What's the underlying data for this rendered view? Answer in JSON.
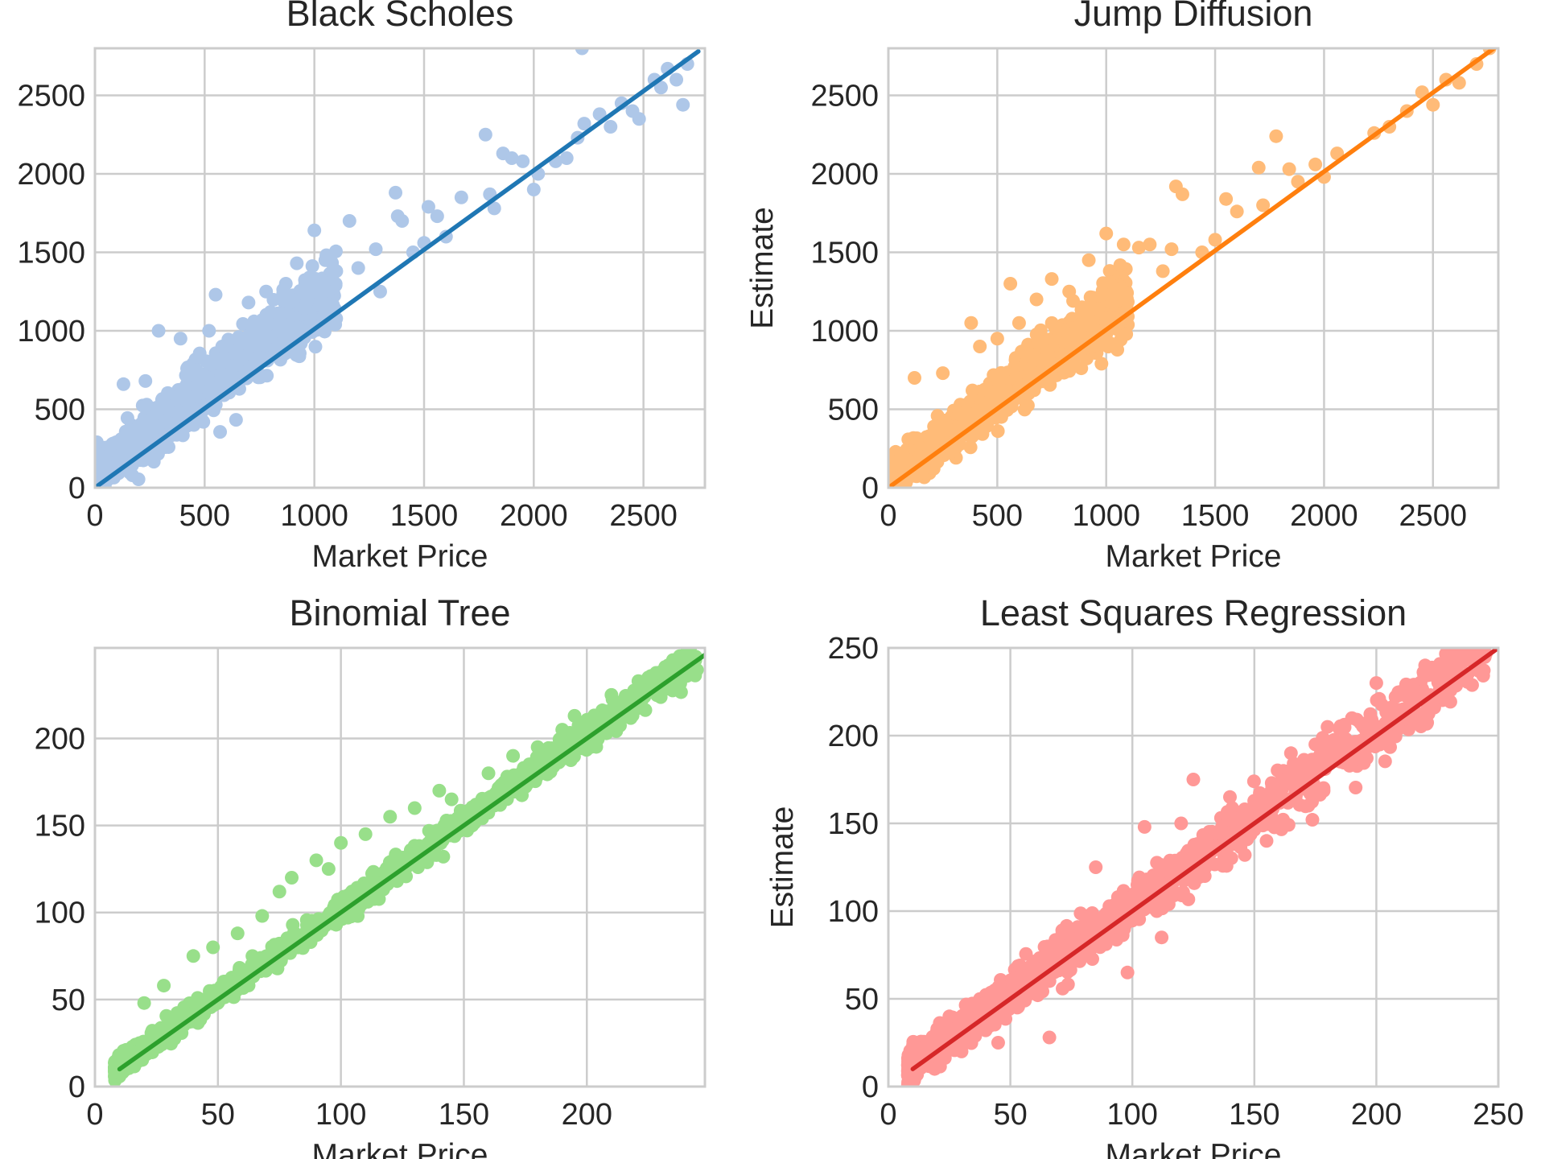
{
  "chart_data": [
    {
      "type": "scatter",
      "title": "Black Scholes",
      "xlabel": "Market Price",
      "ylabel": "",
      "xlim": [
        0,
        2780
      ],
      "ylim": [
        0,
        2800
      ],
      "xticks": [
        0,
        500,
        1000,
        1500,
        2000,
        2500
      ],
      "yticks": [
        0,
        500,
        1000,
        1500,
        2000,
        2500
      ],
      "grid": true,
      "colors": {
        "points": "#aec7e8",
        "line": "#1f77b4"
      },
      "fit_line": {
        "x": [
          0,
          2750
        ],
        "y": [
          0,
          2780
        ]
      },
      "series": [
        {
          "cloud": {
            "x_min": 0,
            "x_max": 1100,
            "slope": 1.08,
            "intercept": 90,
            "noise": 110,
            "count": 1400
          },
          "points": [
            [
              130,
              660
            ],
            [
              230,
              680
            ],
            [
              290,
              1000
            ],
            [
              390,
              950
            ],
            [
              420,
              760
            ],
            [
              520,
              1000
            ],
            [
              550,
              1230
            ],
            [
              580,
              900
            ],
            [
              640,
              700
            ],
            [
              700,
              1180
            ],
            [
              780,
              1250
            ],
            [
              800,
              1120
            ],
            [
              870,
              1300
            ],
            [
              920,
              1430
            ],
            [
              1000,
              1640
            ],
            [
              1050,
              1450
            ],
            [
              1100,
              1380
            ],
            [
              1160,
              1700
            ],
            [
              1200,
              1400
            ],
            [
              1280,
              1520
            ],
            [
              1300,
              1250
            ],
            [
              1370,
              1880
            ],
            [
              1380,
              1730
            ],
            [
              1400,
              1700
            ],
            [
              1450,
              1500
            ],
            [
              1500,
              1560
            ],
            [
              1520,
              1790
            ],
            [
              1560,
              1730
            ],
            [
              1600,
              1600
            ],
            [
              1670,
              1850
            ],
            [
              1780,
              2250
            ],
            [
              1800,
              1870
            ],
            [
              1820,
              1780
            ],
            [
              1860,
              2130
            ],
            [
              1900,
              2100
            ],
            [
              1950,
              2080
            ],
            [
              2000,
              1900
            ],
            [
              2020,
              2000
            ],
            [
              2100,
              2080
            ],
            [
              2150,
              2100
            ],
            [
              2200,
              2230
            ],
            [
              2220,
              2800
            ],
            [
              2230,
              2320
            ],
            [
              2300,
              2380
            ],
            [
              2350,
              2300
            ],
            [
              2400,
              2450
            ],
            [
              2450,
              2400
            ],
            [
              2480,
              2350
            ],
            [
              2550,
              2600
            ],
            [
              2580,
              2550
            ],
            [
              2610,
              2670
            ],
            [
              2650,
              2600
            ],
            [
              2680,
              2440
            ],
            [
              2700,
              2700
            ]
          ]
        }
      ]
    },
    {
      "type": "scatter",
      "title": "Jump Diffusion",
      "xlabel": "Market Price",
      "ylabel": "Estimate",
      "xlim": [
        0,
        2800
      ],
      "ylim": [
        0,
        2800
      ],
      "xticks": [
        0,
        500,
        1000,
        1500,
        2000,
        2500
      ],
      "yticks": [
        0,
        500,
        1000,
        1500,
        2000,
        2500
      ],
      "grid": true,
      "colors": {
        "points": "#ffbb78",
        "line": "#ff7f0e"
      },
      "fit_line": {
        "x": [
          0,
          2800
        ],
        "y": [
          0,
          2820
        ]
      },
      "series": [
        {
          "cloud": {
            "x_min": 0,
            "x_max": 1100,
            "slope": 1.05,
            "intercept": 50,
            "noise": 100,
            "count": 1400
          },
          "points": [
            [
              120,
              700
            ],
            [
              250,
              730
            ],
            [
              380,
              1050
            ],
            [
              420,
              900
            ],
            [
              500,
              950
            ],
            [
              560,
              1300
            ],
            [
              600,
              1050
            ],
            [
              680,
              1200
            ],
            [
              750,
              1330
            ],
            [
              830,
              1250
            ],
            [
              920,
              1450
            ],
            [
              1000,
              1620
            ],
            [
              1080,
              1550
            ],
            [
              1150,
              1530
            ],
            [
              1200,
              1550
            ],
            [
              1260,
              1380
            ],
            [
              1300,
              1520
            ],
            [
              1320,
              1920
            ],
            [
              1350,
              1870
            ],
            [
              1440,
              1500
            ],
            [
              1500,
              1580
            ],
            [
              1550,
              1840
            ],
            [
              1600,
              1760
            ],
            [
              1700,
              2040
            ],
            [
              1720,
              1800
            ],
            [
              1780,
              2240
            ],
            [
              1840,
              2030
            ],
            [
              1880,
              1950
            ],
            [
              1960,
              2060
            ],
            [
              2000,
              1980
            ],
            [
              2060,
              2130
            ],
            [
              2200,
              2840
            ],
            [
              2230,
              2260
            ],
            [
              2300,
              2300
            ],
            [
              2380,
              2400
            ],
            [
              2450,
              2520
            ],
            [
              2500,
              2440
            ],
            [
              2560,
              2600
            ],
            [
              2620,
              2580
            ],
            [
              2700,
              2700
            ],
            [
              2760,
              2800
            ]
          ]
        }
      ]
    },
    {
      "type": "scatter",
      "title": "Binomial Tree",
      "xlabel": "Market Price",
      "ylabel": "Estimate",
      "xlim": [
        0,
        248
      ],
      "ylim": [
        0,
        252
      ],
      "xticks": [
        0,
        50,
        100,
        150,
        200
      ],
      "yticks": [
        0,
        50,
        100,
        150,
        200
      ],
      "grid": true,
      "colors": {
        "points": "#98df8a",
        "line": "#2ca02c"
      },
      "fit_line": {
        "x": [
          10,
          248
        ],
        "y": [
          10,
          248
        ]
      },
      "series": [
        {
          "cloud": {
            "x_min": 8,
            "x_max": 245,
            "slope": 1.0,
            "intercept": 2,
            "noise": 5,
            "count": 1300
          },
          "points": [
            [
              20,
              48
            ],
            [
              28,
              58
            ],
            [
              40,
              75
            ],
            [
              48,
              80
            ],
            [
              58,
              88
            ],
            [
              68,
              98
            ],
            [
              75,
              112
            ],
            [
              80,
              120
            ],
            [
              90,
              130
            ],
            [
              95,
              125
            ],
            [
              100,
              140
            ],
            [
              110,
              145
            ],
            [
              120,
              155
            ],
            [
              130,
              160
            ],
            [
              140,
              170
            ],
            [
              145,
              165
            ],
            [
              160,
              180
            ],
            [
              170,
              190
            ],
            [
              180,
              195
            ],
            [
              190,
              205
            ],
            [
              195,
              213
            ],
            [
              210,
              225
            ],
            [
              215,
              220
            ],
            [
              225,
              235
            ],
            [
              235,
              245
            ],
            [
              242,
              252
            ]
          ]
        }
      ]
    },
    {
      "type": "scatter",
      "title": "Least Squares Regression",
      "xlabel": "Market Price",
      "ylabel": "Estimate",
      "xlim": [
        0,
        250
      ],
      "ylim": [
        0,
        250
      ],
      "xticks": [
        0,
        50,
        100,
        150,
        200,
        250
      ],
      "yticks": [
        0,
        50,
        100,
        150,
        200,
        250
      ],
      "grid": true,
      "colors": {
        "points": "#ff9896",
        "line": "#d62728"
      },
      "fit_line": {
        "x": [
          10,
          250
        ],
        "y": [
          10,
          250
        ]
      },
      "series": [
        {
          "cloud": {
            "x_min": 8,
            "x_max": 245,
            "slope": 1.0,
            "intercept": 3,
            "noise": 9,
            "count": 1300
          },
          "points": [
            [
              25,
              40
            ],
            [
              30,
              20
            ],
            [
              45,
              25
            ],
            [
              50,
              55
            ],
            [
              60,
              55
            ],
            [
              66,
              28
            ],
            [
              70,
              80
            ],
            [
              80,
              90
            ],
            [
              85,
              125
            ],
            [
              90,
              95
            ],
            [
              98,
              65
            ],
            [
              105,
              148
            ],
            [
              110,
              100
            ],
            [
              112,
              85
            ],
            [
              120,
              150
            ],
            [
              125,
              175
            ],
            [
              130,
              125
            ],
            [
              140,
              165
            ],
            [
              150,
              160
            ],
            [
              155,
              140
            ],
            [
              165,
              190
            ],
            [
              175,
              195
            ],
            [
              180,
              205
            ],
            [
              190,
              210
            ],
            [
              200,
              230
            ],
            [
              210,
              225
            ],
            [
              220,
              240
            ],
            [
              230,
              265
            ],
            [
              240,
              245
            ]
          ]
        }
      ]
    }
  ]
}
